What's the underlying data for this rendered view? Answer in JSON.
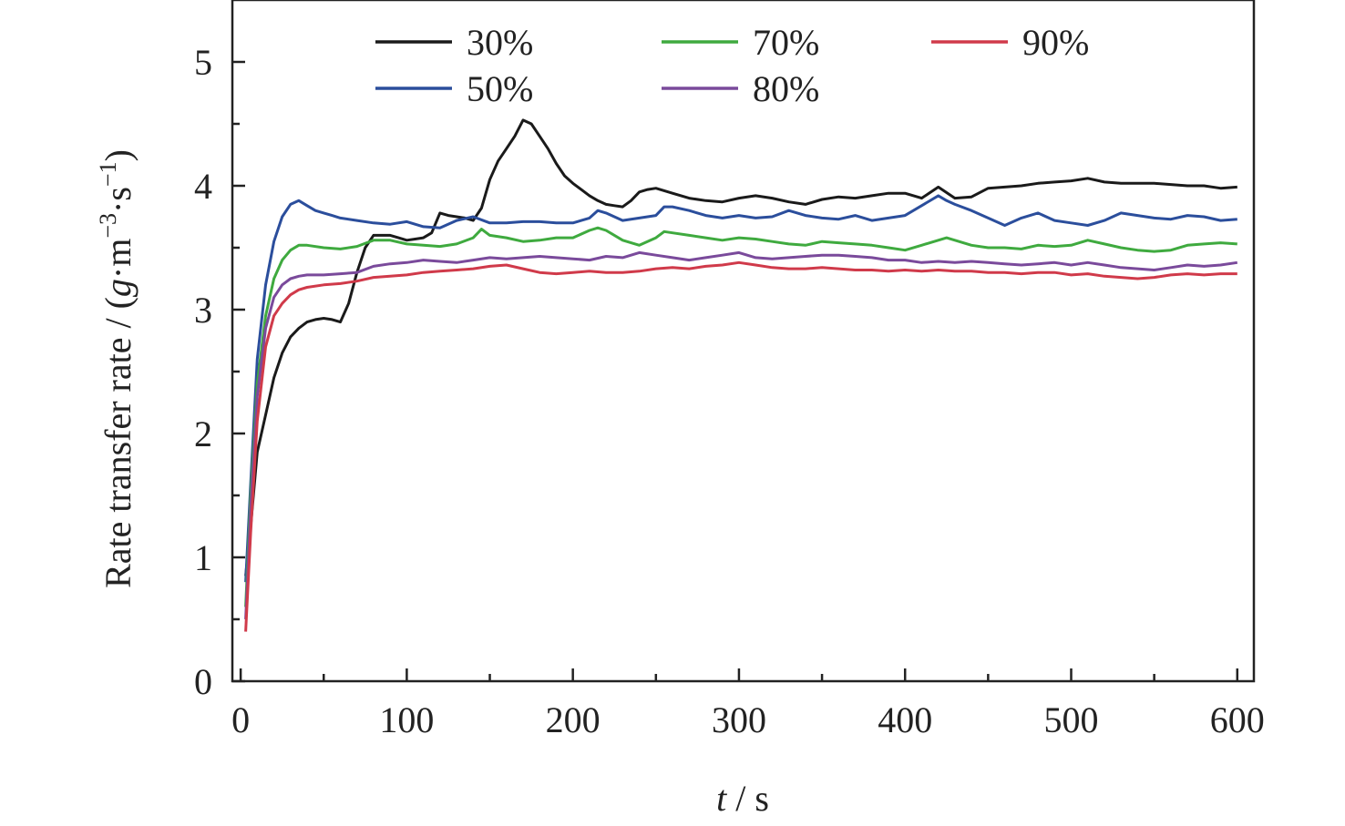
{
  "chart_data": {
    "type": "line",
    "title": "",
    "xlabel": {
      "italic": "t",
      "rest": " / s"
    },
    "ylabel": {
      "prefix": "Rate transfer rate / (",
      "g": "g",
      "m": "·m",
      "m_exp": "−3",
      "s": "·s",
      "s_exp": "−1",
      "suffix": ")"
    },
    "xlim": [
      -5,
      610
    ],
    "ylim": [
      0,
      5.5
    ],
    "xticks": [
      0,
      100,
      200,
      300,
      400,
      500,
      600
    ],
    "yticks": [
      0,
      1,
      2,
      3,
      4,
      5
    ],
    "grid": false,
    "legend_position": "top",
    "series": [
      {
        "name": "30%",
        "color": "#1a1a1a",
        "x": [
          3,
          6,
          10,
          15,
          20,
          25,
          30,
          35,
          40,
          45,
          50,
          55,
          60,
          65,
          70,
          75,
          80,
          85,
          90,
          95,
          100,
          105,
          110,
          115,
          120,
          125,
          130,
          135,
          140,
          145,
          150,
          155,
          160,
          165,
          170,
          175,
          180,
          185,
          190,
          195,
          200,
          205,
          210,
          215,
          220,
          225,
          230,
          235,
          240,
          245,
          250,
          255,
          260,
          270,
          280,
          290,
          300,
          310,
          320,
          330,
          340,
          350,
          360,
          370,
          380,
          390,
          400,
          410,
          420,
          430,
          440,
          450,
          460,
          470,
          480,
          490,
          500,
          510,
          520,
          530,
          540,
          550,
          560,
          570,
          580,
          590,
          600
        ],
        "y": [
          0.85,
          1.25,
          1.85,
          2.15,
          2.45,
          2.65,
          2.78,
          2.85,
          2.9,
          2.92,
          2.93,
          2.92,
          2.9,
          3.05,
          3.3,
          3.5,
          3.6,
          3.6,
          3.6,
          3.58,
          3.56,
          3.57,
          3.58,
          3.62,
          3.78,
          3.76,
          3.75,
          3.74,
          3.72,
          3.82,
          4.05,
          4.2,
          4.3,
          4.4,
          4.53,
          4.5,
          4.4,
          4.3,
          4.18,
          4.08,
          4.02,
          3.97,
          3.92,
          3.88,
          3.85,
          3.84,
          3.83,
          3.88,
          3.95,
          3.97,
          3.98,
          3.96,
          3.94,
          3.9,
          3.88,
          3.87,
          3.9,
          3.92,
          3.9,
          3.87,
          3.85,
          3.89,
          3.91,
          3.9,
          3.92,
          3.94,
          3.94,
          3.9,
          3.99,
          3.9,
          3.91,
          3.98,
          3.99,
          4.0,
          4.02,
          4.03,
          4.04,
          4.06,
          4.03,
          4.02,
          4.02,
          4.02,
          4.01,
          4.0,
          4.0,
          3.98,
          3.99
        ]
      },
      {
        "name": "50%",
        "color": "#2b4e9c",
        "x": [
          3,
          6,
          10,
          15,
          20,
          25,
          30,
          35,
          40,
          45,
          50,
          55,
          60,
          70,
          80,
          90,
          100,
          110,
          120,
          130,
          140,
          150,
          160,
          170,
          180,
          190,
          200,
          210,
          215,
          220,
          230,
          240,
          250,
          255,
          260,
          270,
          280,
          290,
          300,
          310,
          320,
          330,
          340,
          350,
          360,
          370,
          380,
          390,
          400,
          410,
          420,
          425,
          430,
          440,
          450,
          460,
          470,
          480,
          490,
          500,
          510,
          520,
          530,
          540,
          550,
          560,
          570,
          580,
          590,
          600
        ],
        "y": [
          0.8,
          1.6,
          2.6,
          3.2,
          3.55,
          3.75,
          3.85,
          3.88,
          3.84,
          3.8,
          3.78,
          3.76,
          3.74,
          3.72,
          3.7,
          3.69,
          3.71,
          3.67,
          3.66,
          3.72,
          3.75,
          3.7,
          3.7,
          3.71,
          3.71,
          3.7,
          3.7,
          3.74,
          3.8,
          3.78,
          3.72,
          3.74,
          3.76,
          3.83,
          3.83,
          3.8,
          3.76,
          3.74,
          3.76,
          3.74,
          3.75,
          3.8,
          3.76,
          3.74,
          3.73,
          3.76,
          3.72,
          3.74,
          3.76,
          3.84,
          3.92,
          3.88,
          3.85,
          3.8,
          3.74,
          3.68,
          3.74,
          3.78,
          3.72,
          3.7,
          3.68,
          3.72,
          3.78,
          3.76,
          3.74,
          3.73,
          3.76,
          3.75,
          3.72,
          3.73
        ]
      },
      {
        "name": "70%",
        "color": "#3faa3f",
        "x": [
          3,
          6,
          10,
          15,
          20,
          25,
          30,
          35,
          40,
          50,
          60,
          70,
          80,
          90,
          100,
          110,
          120,
          130,
          140,
          145,
          150,
          160,
          170,
          180,
          190,
          200,
          210,
          215,
          220,
          230,
          240,
          250,
          255,
          260,
          270,
          280,
          290,
          300,
          310,
          320,
          330,
          340,
          350,
          360,
          370,
          380,
          390,
          400,
          410,
          420,
          425,
          430,
          440,
          450,
          460,
          470,
          480,
          490,
          500,
          510,
          520,
          530,
          540,
          550,
          560,
          570,
          580,
          590,
          600
        ],
        "y": [
          0.6,
          1.5,
          2.4,
          2.95,
          3.25,
          3.4,
          3.48,
          3.52,
          3.52,
          3.5,
          3.49,
          3.51,
          3.56,
          3.56,
          3.53,
          3.52,
          3.51,
          3.53,
          3.58,
          3.65,
          3.6,
          3.58,
          3.55,
          3.56,
          3.58,
          3.58,
          3.64,
          3.66,
          3.64,
          3.56,
          3.52,
          3.58,
          3.63,
          3.62,
          3.6,
          3.58,
          3.56,
          3.58,
          3.57,
          3.55,
          3.53,
          3.52,
          3.55,
          3.54,
          3.53,
          3.52,
          3.5,
          3.48,
          3.52,
          3.56,
          3.58,
          3.56,
          3.52,
          3.5,
          3.5,
          3.49,
          3.52,
          3.51,
          3.52,
          3.56,
          3.53,
          3.5,
          3.48,
          3.47,
          3.48,
          3.52,
          3.53,
          3.54,
          3.53
        ]
      },
      {
        "name": "80%",
        "color": "#7a4a9b",
        "x": [
          3,
          6,
          10,
          15,
          20,
          25,
          30,
          35,
          40,
          50,
          60,
          70,
          80,
          90,
          100,
          110,
          120,
          130,
          140,
          150,
          160,
          170,
          180,
          190,
          200,
          210,
          220,
          230,
          240,
          250,
          260,
          270,
          280,
          290,
          300,
          310,
          320,
          330,
          340,
          350,
          360,
          370,
          380,
          390,
          400,
          410,
          420,
          430,
          440,
          450,
          460,
          470,
          480,
          490,
          500,
          510,
          520,
          530,
          540,
          550,
          560,
          570,
          580,
          590,
          600
        ],
        "y": [
          0.5,
          1.4,
          2.3,
          2.85,
          3.1,
          3.2,
          3.25,
          3.27,
          3.28,
          3.28,
          3.29,
          3.3,
          3.35,
          3.37,
          3.38,
          3.4,
          3.39,
          3.38,
          3.4,
          3.42,
          3.41,
          3.42,
          3.43,
          3.42,
          3.41,
          3.4,
          3.43,
          3.42,
          3.46,
          3.44,
          3.42,
          3.4,
          3.42,
          3.44,
          3.46,
          3.42,
          3.41,
          3.42,
          3.43,
          3.44,
          3.44,
          3.43,
          3.42,
          3.4,
          3.4,
          3.38,
          3.39,
          3.38,
          3.39,
          3.38,
          3.37,
          3.36,
          3.37,
          3.38,
          3.36,
          3.38,
          3.36,
          3.34,
          3.33,
          3.32,
          3.34,
          3.36,
          3.35,
          3.36,
          3.38
        ]
      },
      {
        "name": "90%",
        "color": "#d03a4a",
        "x": [
          3,
          6,
          10,
          15,
          20,
          25,
          30,
          35,
          40,
          50,
          60,
          70,
          80,
          90,
          100,
          110,
          120,
          130,
          140,
          150,
          160,
          170,
          180,
          190,
          200,
          210,
          220,
          230,
          240,
          250,
          260,
          270,
          280,
          290,
          300,
          310,
          320,
          330,
          340,
          350,
          360,
          370,
          380,
          390,
          400,
          410,
          420,
          430,
          440,
          450,
          460,
          470,
          480,
          490,
          500,
          510,
          520,
          530,
          540,
          550,
          560,
          570,
          580,
          590,
          600
        ],
        "y": [
          0.4,
          1.2,
          2.1,
          2.7,
          2.95,
          3.05,
          3.12,
          3.16,
          3.18,
          3.2,
          3.21,
          3.23,
          3.26,
          3.27,
          3.28,
          3.3,
          3.31,
          3.32,
          3.33,
          3.35,
          3.36,
          3.33,
          3.3,
          3.29,
          3.3,
          3.31,
          3.3,
          3.3,
          3.31,
          3.33,
          3.34,
          3.33,
          3.35,
          3.36,
          3.38,
          3.36,
          3.34,
          3.33,
          3.33,
          3.34,
          3.33,
          3.32,
          3.32,
          3.31,
          3.32,
          3.31,
          3.32,
          3.31,
          3.31,
          3.3,
          3.3,
          3.29,
          3.3,
          3.3,
          3.28,
          3.29,
          3.27,
          3.26,
          3.25,
          3.26,
          3.28,
          3.29,
          3.28,
          3.29,
          3.29
        ]
      }
    ]
  }
}
